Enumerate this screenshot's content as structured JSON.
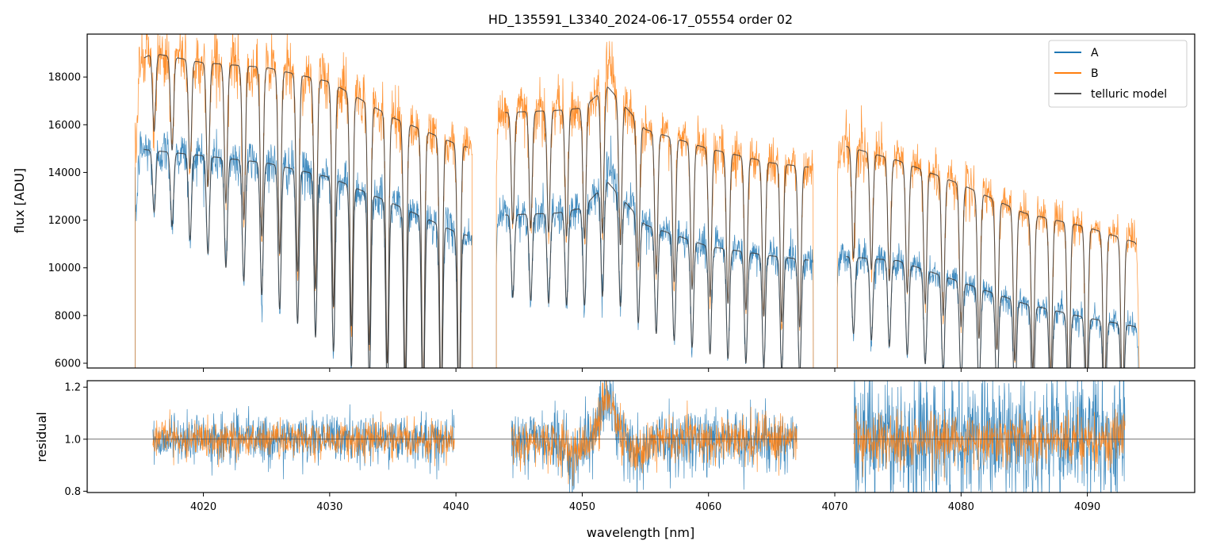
{
  "chart_data": [
    {
      "type": "line",
      "title": "HD_135591_L3340_2024-06-17_05554  order 02",
      "xlabel": "",
      "ylabel": "flux [ADU]",
      "xlim": [
        4010.8,
        4098.5
      ],
      "ylim": [
        5800,
        19800
      ],
      "yticks": [
        6000,
        8000,
        10000,
        12000,
        14000,
        16000,
        18000
      ],
      "ytick_labels": [
        "6000",
        "8000",
        "10000",
        "12000",
        "14000",
        "16000",
        "18000"
      ],
      "xticks": [
        4020,
        4030,
        4040,
        4050,
        4060,
        4070,
        4080,
        4090
      ],
      "legend": {
        "position": "top-right",
        "entries": [
          "A",
          "B",
          "telluric model"
        ]
      },
      "segments_x": [
        [
          4014.6,
          4041.3
        ],
        [
          4043.2,
          4068.3
        ],
        [
          4070.2,
          4094.2
        ]
      ],
      "series": [
        {
          "name": "A",
          "color": "#1f77b4",
          "level_points": [
            [
              4014.6,
              15000
            ],
            [
              4020,
              14700
            ],
            [
              4025,
              14400
            ],
            [
              4030,
              13800
            ],
            [
              4035,
              12700
            ],
            [
              4040,
              11500
            ],
            [
              4041.3,
              11300
            ],
            [
              4043.2,
              12200
            ],
            [
              4048,
              12300
            ],
            [
              4050,
              12500
            ],
            [
              4052,
              13600
            ],
            [
              4055,
              11800
            ],
            [
              4060,
              10900
            ],
            [
              4065,
              10500
            ],
            [
              4068.3,
              10300
            ],
            [
              4070.2,
              10500
            ],
            [
              4075,
              10300
            ],
            [
              4080,
              9400
            ],
            [
              4085,
              8500
            ],
            [
              4090,
              7900
            ],
            [
              4094.2,
              7500
            ]
          ]
        },
        {
          "name": "B",
          "color": "#ff7f0e",
          "level_points": [
            [
              4014.6,
              18600
            ],
            [
              4016,
              19000
            ],
            [
              4020,
              18600
            ],
            [
              4025,
              18400
            ],
            [
              4030,
              17800
            ],
            [
              4035,
              16300
            ],
            [
              4040,
              15200
            ],
            [
              4041.3,
              15000
            ],
            [
              4043.2,
              16500
            ],
            [
              4048,
              16600
            ],
            [
              4050,
              16700
            ],
            [
              4052,
              17600
            ],
            [
              4055,
              15800
            ],
            [
              4060,
              15000
            ],
            [
              4065,
              14400
            ],
            [
              4068.3,
              14200
            ],
            [
              4070.2,
              15200
            ],
            [
              4075,
              14500
            ],
            [
              4080,
              13500
            ],
            [
              4085,
              12300
            ],
            [
              4090,
              11700
            ],
            [
              4094.2,
              11000
            ]
          ]
        },
        {
          "name": "telluric model",
          "color": "#555555",
          "description_points": "smooth continuum of A and B with periodic absorption lines"
        }
      ]
    },
    {
      "type": "line",
      "title": "",
      "xlabel": "wavelength [nm]",
      "ylabel": "residual",
      "xlim": [
        4010.8,
        4098.5
      ],
      "ylim": [
        0.795,
        1.225
      ],
      "yticks": [
        0.8,
        1.0,
        1.2
      ],
      "ytick_labels": [
        "0.8",
        "1.0",
        "1.2"
      ],
      "xticks": [
        4020,
        4030,
        4040,
        4050,
        4060,
        4070,
        4080,
        4090
      ],
      "xtick_labels": [
        "4020",
        "4030",
        "4040",
        "4050",
        "4060",
        "4070",
        "4080",
        "4090"
      ],
      "reference_line": 1.0,
      "segments_x": [
        [
          4016.0,
          4039.9
        ],
        [
          4044.4,
          4067.0
        ],
        [
          4071.5,
          4093.0
        ]
      ],
      "series": [
        {
          "name": "A",
          "color": "#1f77b4",
          "noise_by_segment": [
            0.045,
            0.06,
            0.12
          ]
        },
        {
          "name": "B",
          "color": "#ff7f0e",
          "noise_by_segment": [
            0.035,
            0.045,
            0.05
          ]
        }
      ],
      "features": [
        {
          "x": 4052.0,
          "peak": 1.2,
          "note": ""
        }
      ]
    }
  ]
}
